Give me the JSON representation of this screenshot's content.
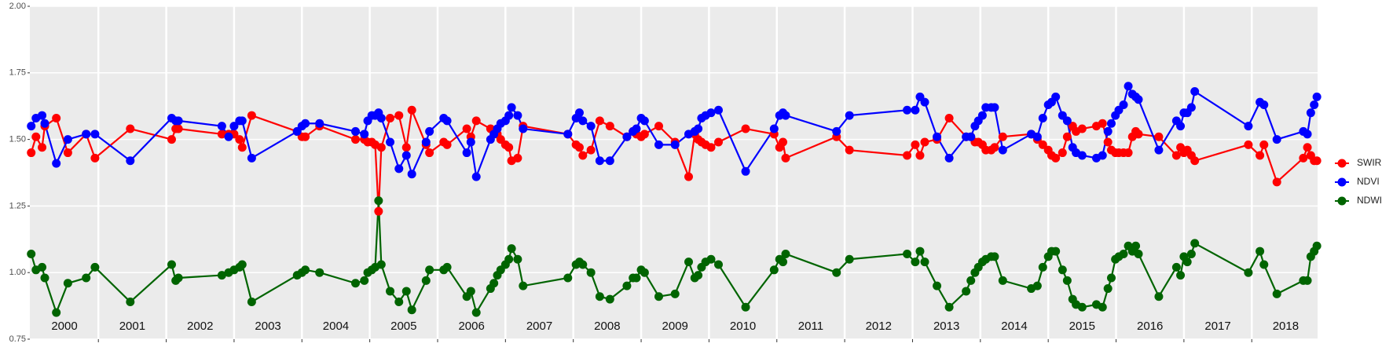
{
  "chart_data": {
    "type": "line",
    "x": [
      2000.01,
      2000.08,
      2000.17,
      2000.21,
      2000.38,
      2000.55,
      2000.82,
      2000.95,
      2001.47,
      2002.08,
      2002.14,
      2002.18,
      2002.82,
      2002.92,
      2003.0,
      2003.08,
      2003.12,
      2003.26,
      2003.93,
      2004.0,
      2004.05,
      2004.26,
      2004.79,
      2004.92,
      2004.97,
      2005.03,
      2005.08,
      2005.13,
      2005.17,
      2005.3,
      2005.43,
      2005.54,
      2005.62,
      2005.83,
      2005.88,
      2006.09,
      2006.14,
      2006.43,
      2006.49,
      2006.57,
      2006.78,
      2006.83,
      2006.88,
      2006.93,
      2007.0,
      2007.05,
      2007.09,
      2007.18,
      2007.26,
      2007.92,
      2008.04,
      2008.09,
      2008.14,
      2008.26,
      2008.39,
      2008.54,
      2008.79,
      2008.88,
      2008.93,
      2009.0,
      2009.05,
      2009.26,
      2009.5,
      2009.7,
      2009.79,
      2009.84,
      2009.89,
      2009.95,
      2010.03,
      2010.14,
      2010.54,
      2010.96,
      2011.04,
      2011.09,
      2011.13,
      2011.88,
      2012.07,
      2012.92,
      2013.04,
      2013.11,
      2013.18,
      2013.36,
      2013.54,
      2013.79,
      2013.86,
      2013.92,
      2013.97,
      2014.03,
      2014.08,
      2014.16,
      2014.21,
      2014.33,
      2014.75,
      2014.84,
      2014.92,
      2015.0,
      2015.05,
      2015.11,
      2015.21,
      2015.28,
      2015.36,
      2015.41,
      2015.5,
      2015.71,
      2015.8,
      2015.88,
      2015.93,
      2015.99,
      2016.04,
      2016.11,
      2016.18,
      2016.24,
      2016.29,
      2016.33,
      2016.63,
      2016.89,
      2016.95,
      2017.0,
      2017.05,
      2017.11,
      2017.16,
      2017.95,
      2018.12,
      2018.18,
      2018.37,
      2018.76,
      2018.82,
      2018.87,
      2018.92,
      2018.96
    ],
    "series": [
      {
        "name": "SWIR",
        "color": "#ff0000",
        "values": [
          1.45,
          1.51,
          1.47,
          1.55,
          1.58,
          1.45,
          1.52,
          1.43,
          1.54,
          1.5,
          1.54,
          1.54,
          1.52,
          1.52,
          1.52,
          1.5,
          1.47,
          1.59,
          1.53,
          1.51,
          1.51,
          1.55,
          1.5,
          1.5,
          1.49,
          1.49,
          1.48,
          1.23,
          1.47,
          1.58,
          1.59,
          1.47,
          1.61,
          1.48,
          1.45,
          1.49,
          1.48,
          1.54,
          1.51,
          1.57,
          1.54,
          1.53,
          1.52,
          1.5,
          1.48,
          1.47,
          1.42,
          1.43,
          1.55,
          1.52,
          1.48,
          1.47,
          1.44,
          1.46,
          1.57,
          1.55,
          1.51,
          1.53,
          1.52,
          1.51,
          1.52,
          1.55,
          1.49,
          1.36,
          1.52,
          1.5,
          1.49,
          1.48,
          1.47,
          1.49,
          1.54,
          1.52,
          1.47,
          1.49,
          1.43,
          1.51,
          1.46,
          1.44,
          1.48,
          1.44,
          1.49,
          1.5,
          1.58,
          1.51,
          1.51,
          1.49,
          1.49,
          1.48,
          1.46,
          1.46,
          1.47,
          1.51,
          1.52,
          1.5,
          1.48,
          1.46,
          1.44,
          1.43,
          1.45,
          1.51,
          1.55,
          1.53,
          1.54,
          1.55,
          1.56,
          1.49,
          1.46,
          1.45,
          1.45,
          1.45,
          1.45,
          1.51,
          1.53,
          1.52,
          1.51,
          1.44,
          1.47,
          1.45,
          1.46,
          1.44,
          1.42,
          1.48,
          1.44,
          1.48,
          1.34,
          1.43,
          1.47,
          1.44,
          1.42,
          1.42
        ]
      },
      {
        "name": "NDVI",
        "color": "#0000ff",
        "values": [
          1.55,
          1.58,
          1.59,
          1.56,
          1.41,
          1.5,
          1.52,
          1.52,
          1.42,
          1.58,
          1.57,
          1.57,
          1.55,
          1.51,
          1.55,
          1.57,
          1.57,
          1.43,
          1.53,
          1.55,
          1.56,
          1.56,
          1.53,
          1.52,
          1.57,
          1.59,
          1.59,
          1.6,
          1.58,
          1.49,
          1.39,
          1.44,
          1.37,
          1.49,
          1.53,
          1.58,
          1.57,
          1.45,
          1.49,
          1.36,
          1.5,
          1.52,
          1.54,
          1.56,
          1.57,
          1.59,
          1.62,
          1.59,
          1.54,
          1.52,
          1.58,
          1.6,
          1.57,
          1.55,
          1.42,
          1.42,
          1.51,
          1.53,
          1.54,
          1.58,
          1.57,
          1.48,
          1.48,
          1.52,
          1.53,
          1.54,
          1.58,
          1.59,
          1.6,
          1.61,
          1.38,
          1.54,
          1.59,
          1.6,
          1.59,
          1.53,
          1.59,
          1.61,
          1.61,
          1.66,
          1.64,
          1.51,
          1.43,
          1.51,
          1.51,
          1.55,
          1.57,
          1.59,
          1.62,
          1.62,
          1.62,
          1.46,
          1.52,
          1.51,
          1.58,
          1.63,
          1.64,
          1.66,
          1.59,
          1.57,
          1.47,
          1.45,
          1.44,
          1.43,
          1.44,
          1.53,
          1.56,
          1.59,
          1.61,
          1.63,
          1.7,
          1.67,
          1.66,
          1.65,
          1.46,
          1.57,
          1.55,
          1.6,
          1.6,
          1.62,
          1.68,
          1.55,
          1.64,
          1.63,
          1.5,
          1.53,
          1.52,
          1.6,
          1.63,
          1.66
        ]
      },
      {
        "name": "NDWI",
        "color": "#006400",
        "values": [
          1.07,
          1.01,
          1.02,
          0.98,
          0.85,
          0.96,
          0.98,
          1.02,
          0.89,
          1.03,
          0.97,
          0.98,
          0.99,
          1.0,
          1.01,
          1.02,
          1.03,
          0.89,
          0.99,
          1.0,
          1.01,
          1.0,
          0.96,
          0.97,
          1.0,
          1.01,
          1.02,
          1.27,
          1.03,
          0.93,
          0.89,
          0.93,
          0.86,
          0.97,
          1.01,
          1.01,
          1.02,
          0.91,
          0.93,
          0.85,
          0.94,
          0.96,
          0.99,
          1.01,
          1.03,
          1.05,
          1.09,
          1.05,
          0.95,
          0.98,
          1.03,
          1.04,
          1.03,
          1.0,
          0.91,
          0.9,
          0.95,
          0.98,
          0.98,
          1.01,
          1.0,
          0.91,
          0.92,
          1.04,
          0.98,
          0.99,
          1.02,
          1.04,
          1.05,
          1.03,
          0.87,
          1.01,
          1.05,
          1.04,
          1.07,
          1.0,
          1.05,
          1.07,
          1.04,
          1.08,
          1.04,
          0.95,
          0.87,
          0.93,
          0.97,
          1.0,
          1.02,
          1.04,
          1.05,
          1.06,
          1.06,
          0.97,
          0.94,
          0.95,
          1.02,
          1.06,
          1.08,
          1.08,
          1.01,
          0.97,
          0.9,
          0.88,
          0.87,
          0.88,
          0.87,
          0.94,
          0.98,
          1.05,
          1.06,
          1.07,
          1.1,
          1.08,
          1.1,
          1.07,
          0.91,
          1.02,
          0.99,
          1.06,
          1.04,
          1.07,
          1.11,
          1.0,
          1.08,
          1.03,
          0.92,
          0.97,
          0.97,
          1.06,
          1.08,
          1.1
        ]
      }
    ],
    "xlim": [
      1999.99,
      2018.97
    ],
    "xticks": [
      {
        "value": 2000.5,
        "label": "2000"
      },
      {
        "value": 2001.5,
        "label": "2001"
      },
      {
        "value": 2002.5,
        "label": "2002"
      },
      {
        "value": 2003.5,
        "label": "2003"
      },
      {
        "value": 2004.5,
        "label": "2004"
      },
      {
        "value": 2005.5,
        "label": "2005"
      },
      {
        "value": 2006.5,
        "label": "2006"
      },
      {
        "value": 2007.5,
        "label": "2007"
      },
      {
        "value": 2008.5,
        "label": "2008"
      },
      {
        "value": 2009.5,
        "label": "2009"
      },
      {
        "value": 2010.5,
        "label": "2010"
      },
      {
        "value": 2011.5,
        "label": "2011"
      },
      {
        "value": 2012.5,
        "label": "2012"
      },
      {
        "value": 2013.5,
        "label": "2013"
      },
      {
        "value": 2014.5,
        "label": "2014"
      },
      {
        "value": 2015.5,
        "label": "2015"
      },
      {
        "value": 2016.5,
        "label": "2016"
      },
      {
        "value": 2017.5,
        "label": "2017"
      },
      {
        "value": 2018.5,
        "label": "2018"
      }
    ],
    "xgrid": [
      2001,
      2002,
      2003,
      2004,
      2005,
      2006,
      2007,
      2008,
      2009,
      2010,
      2011,
      2012,
      2013,
      2014,
      2015,
      2016,
      2017,
      2018
    ],
    "ylim": [
      0.75,
      2.0
    ],
    "yticks": [
      {
        "value": 0.75,
        "label": "0.75"
      },
      {
        "value": 1.0,
        "label": "1.00"
      },
      {
        "value": 1.25,
        "label": "1.25"
      },
      {
        "value": 1.5,
        "label": "1.50"
      },
      {
        "value": 1.75,
        "label": "1.75"
      },
      {
        "value": 2.0,
        "label": "2.00"
      }
    ],
    "grid": true,
    "legend": "right"
  }
}
